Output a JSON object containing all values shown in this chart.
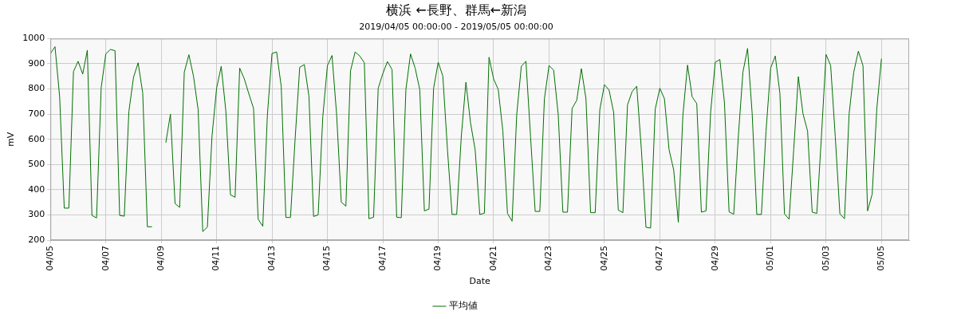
{
  "chart_data": {
    "type": "line",
    "title": "横浜 ←長野、群馬←新潟",
    "subtitle": "2019/04/05 00:00:00 - 2019/05/05 00:00:00",
    "xlabel": "Date",
    "ylabel": "mV",
    "xlim": [
      "2019-04-05",
      "2019-05-06"
    ],
    "xticks": [
      {
        "value": "2019-04-05",
        "label": "04/05"
      },
      {
        "value": "2019-04-07",
        "label": "04/07"
      },
      {
        "value": "2019-04-09",
        "label": "04/09"
      },
      {
        "value": "2019-04-11",
        "label": "04/11"
      },
      {
        "value": "2019-04-13",
        "label": "04/13"
      },
      {
        "value": "2019-04-15",
        "label": "04/15"
      },
      {
        "value": "2019-04-17",
        "label": "04/17"
      },
      {
        "value": "2019-04-19",
        "label": "04/19"
      },
      {
        "value": "2019-04-21",
        "label": "04/21"
      },
      {
        "value": "2019-04-23",
        "label": "04/23"
      },
      {
        "value": "2019-04-25",
        "label": "04/25"
      },
      {
        "value": "2019-04-27",
        "label": "04/27"
      },
      {
        "value": "2019-04-29",
        "label": "04/29"
      },
      {
        "value": "2019-05-01",
        "label": "05/01"
      },
      {
        "value": "2019-05-03",
        "label": "05/03"
      },
      {
        "value": "2019-05-05",
        "label": "05/05"
      }
    ],
    "ylim": [
      200,
      1000
    ],
    "yticks": [
      200,
      300,
      400,
      500,
      600,
      700,
      800,
      900,
      1000
    ],
    "grid": true,
    "legend": "bottom",
    "marker": "none",
    "line_style": "solid",
    "x": [
      "2019-04-05T00:00",
      "2019-04-05T04:00",
      "2019-04-05T08:00",
      "2019-04-05T12:00",
      "2019-04-05T16:00",
      "2019-04-05T20:00",
      "2019-04-06T00:00",
      "2019-04-06T04:00",
      "2019-04-06T08:00",
      "2019-04-06T12:00",
      "2019-04-06T16:00",
      "2019-04-06T20:00",
      "2019-04-07T00:00",
      "2019-04-07T04:00",
      "2019-04-07T08:00",
      "2019-04-07T12:00",
      "2019-04-07T16:00",
      "2019-04-07T20:00",
      "2019-04-08T00:00",
      "2019-04-08T04:00",
      "2019-04-08T08:00",
      "2019-04-08T12:00",
      "2019-04-08T16:00",
      "2019-04-08T20:00",
      "2019-04-09T00:00",
      "2019-04-09T04:00",
      "2019-04-09T08:00",
      "2019-04-09T12:00",
      "2019-04-09T16:00",
      "2019-04-09T20:00",
      "2019-04-10T00:00",
      "2019-04-10T04:00",
      "2019-04-10T08:00",
      "2019-04-10T12:00",
      "2019-04-10T16:00",
      "2019-04-10T20:00",
      "2019-04-11T00:00",
      "2019-04-11T04:00",
      "2019-04-11T08:00",
      "2019-04-11T12:00",
      "2019-04-11T16:00",
      "2019-04-11T20:00",
      "2019-04-12T00:00",
      "2019-04-12T04:00",
      "2019-04-12T08:00",
      "2019-04-12T12:00",
      "2019-04-12T16:00",
      "2019-04-12T20:00",
      "2019-04-13T00:00",
      "2019-04-13T04:00",
      "2019-04-13T08:00",
      "2019-04-13T12:00",
      "2019-04-13T16:00",
      "2019-04-13T20:00",
      "2019-04-14T00:00",
      "2019-04-14T04:00",
      "2019-04-14T08:00",
      "2019-04-14T12:00",
      "2019-04-14T16:00",
      "2019-04-14T20:00",
      "2019-04-15T00:00",
      "2019-04-15T04:00",
      "2019-04-15T08:00",
      "2019-04-15T12:00",
      "2019-04-15T16:00",
      "2019-04-15T20:00",
      "2019-04-16T00:00",
      "2019-04-16T04:00",
      "2019-04-16T08:00",
      "2019-04-16T12:00",
      "2019-04-16T16:00",
      "2019-04-16T20:00",
      "2019-04-17T00:00",
      "2019-04-17T04:00",
      "2019-04-17T08:00",
      "2019-04-17T12:00",
      "2019-04-17T16:00",
      "2019-04-17T20:00",
      "2019-04-18T00:00",
      "2019-04-18T04:00",
      "2019-04-18T08:00",
      "2019-04-18T12:00",
      "2019-04-18T16:00",
      "2019-04-18T20:00",
      "2019-04-19T00:00",
      "2019-04-19T04:00",
      "2019-04-19T08:00",
      "2019-04-19T12:00",
      "2019-04-19T16:00",
      "2019-04-19T20:00",
      "2019-04-20T00:00",
      "2019-04-20T04:00",
      "2019-04-20T08:00",
      "2019-04-20T12:00",
      "2019-04-20T16:00",
      "2019-04-20T20:00",
      "2019-04-21T00:00",
      "2019-04-21T04:00",
      "2019-04-21T08:00",
      "2019-04-21T12:00",
      "2019-04-21T16:00",
      "2019-04-21T20:00",
      "2019-04-22T00:00",
      "2019-04-22T04:00",
      "2019-04-22T08:00",
      "2019-04-22T12:00",
      "2019-04-22T16:00",
      "2019-04-22T20:00",
      "2019-04-23T00:00",
      "2019-04-23T04:00",
      "2019-04-23T08:00",
      "2019-04-23T12:00",
      "2019-04-23T16:00",
      "2019-04-23T20:00",
      "2019-04-24T00:00",
      "2019-04-24T04:00",
      "2019-04-24T08:00",
      "2019-04-24T12:00",
      "2019-04-24T16:00",
      "2019-04-24T20:00",
      "2019-04-25T00:00",
      "2019-04-25T04:00",
      "2019-04-25T08:00",
      "2019-04-25T12:00",
      "2019-04-25T16:00",
      "2019-04-25T20:00",
      "2019-04-26T00:00",
      "2019-04-26T04:00",
      "2019-04-26T08:00",
      "2019-04-26T12:00",
      "2019-04-26T16:00",
      "2019-04-26T20:00",
      "2019-04-27T00:00",
      "2019-04-27T04:00",
      "2019-04-27T08:00",
      "2019-04-27T12:00",
      "2019-04-27T16:00",
      "2019-04-27T20:00",
      "2019-04-28T00:00",
      "2019-04-28T04:00",
      "2019-04-28T08:00",
      "2019-04-28T12:00",
      "2019-04-28T16:00",
      "2019-04-28T20:00",
      "2019-04-29T00:00",
      "2019-04-29T04:00",
      "2019-04-29T08:00",
      "2019-04-29T12:00",
      "2019-04-29T16:00",
      "2019-04-29T20:00",
      "2019-04-30T00:00",
      "2019-04-30T04:00",
      "2019-04-30T08:00",
      "2019-04-30T12:00",
      "2019-04-30T16:00",
      "2019-04-30T20:00",
      "2019-05-01T00:00",
      "2019-05-01T04:00",
      "2019-05-01T08:00",
      "2019-05-01T12:00",
      "2019-05-01T16:00",
      "2019-05-01T20:00",
      "2019-05-02T00:00",
      "2019-05-02T04:00",
      "2019-05-02T08:00",
      "2019-05-02T12:00",
      "2019-05-02T16:00",
      "2019-05-02T20:00",
      "2019-05-03T00:00",
      "2019-05-03T04:00",
      "2019-05-03T08:00",
      "2019-05-03T12:00",
      "2019-05-03T16:00",
      "2019-05-03T20:00",
      "2019-05-04T00:00",
      "2019-05-04T04:00",
      "2019-05-04T08:00",
      "2019-05-04T12:00",
      "2019-05-04T16:00",
      "2019-05-04T20:00",
      "2019-05-05T00:00"
    ],
    "series": [
      {
        "name": "平均値",
        "color": "#007000",
        "values": [
          940,
          968,
          770,
          327,
          327,
          869,
          910,
          859,
          954,
          298,
          288,
          805,
          939,
          957,
          952,
          298,
          295,
          711,
          846,
          904,
          784,
          253,
          253,
          null,
          null,
          587,
          700,
          345,
          330,
          867,
          936,
          850,
          718,
          234,
          252,
          612,
          803,
          890,
          713,
          380,
          370,
          883,
          840,
          780,
          723,
          283,
          255,
          697,
          941,
          947,
          809,
          290,
          290,
          600,
          886,
          897,
          771,
          294,
          300,
          690,
          893,
          933,
          697,
          351,
          335,
          872,
          947,
          931,
          904,
          285,
          291,
          803,
          861,
          909,
          877,
          291,
          289,
          798,
          939,
          883,
          798,
          316,
          323,
          803,
          906,
          851,
          560,
          302,
          302,
          612,
          827,
          665,
          559,
          302,
          307,
          926,
          840,
          798,
          633,
          306,
          275,
          697,
          890,
          910,
          610,
          314,
          314,
          761,
          893,
          875,
          697,
          311,
          311,
          723,
          755,
          881,
          761,
          309,
          309,
          718,
          817,
          796,
          707,
          319,
          309,
          737,
          790,
          811,
          560,
          251,
          248,
          720,
          803,
          761,
          559,
          479,
          271,
          697,
          895,
          769,
          742,
          311,
          316,
          707,
          906,
          917,
          745,
          312,
          303,
          612,
          867,
          961,
          702,
          302,
          302,
          633,
          883,
          931,
          784,
          304,
          283,
          560,
          849,
          702,
          633,
          311,
          306,
          612,
          937,
          893,
          610,
          304,
          285,
          702,
          867,
          950,
          893,
          316,
          383,
          723,
          920
        ]
      }
    ]
  }
}
